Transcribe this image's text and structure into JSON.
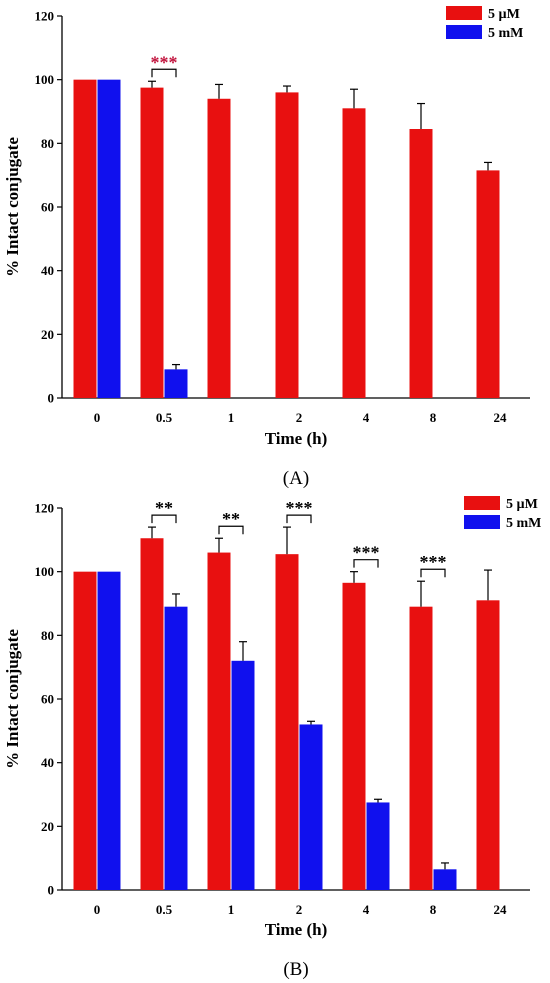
{
  "chart_data": [
    {
      "type": "bar",
      "panel_label": "(A)",
      "xlabel": "Time (h)",
      "ylabel": "% Intact conjugate",
      "ylim": [
        0,
        120
      ],
      "yticks": [
        0,
        20,
        40,
        60,
        80,
        100,
        120
      ],
      "categories": [
        "0",
        "0.5",
        "1",
        "2",
        "4",
        "8",
        "24"
      ],
      "series": [
        {
          "name": "5 µM",
          "color": "#e81010",
          "values": [
            100,
            97.5,
            94,
            96,
            91,
            84.5,
            71.5
          ],
          "errors": [
            0,
            2,
            4.5,
            2,
            6,
            8,
            2.5
          ]
        },
        {
          "name": "5 mM",
          "color": "#1010ee",
          "values": [
            100,
            9,
            null,
            null,
            null,
            null,
            null
          ],
          "errors": [
            0,
            1.5,
            null,
            null,
            null,
            null,
            null
          ]
        }
      ],
      "significance": [
        {
          "category": "0.5",
          "label": "***",
          "color": "#c0103a"
        }
      ],
      "legend_position": "top-right"
    },
    {
      "type": "bar",
      "panel_label": "(B)",
      "xlabel": "Time (h)",
      "ylabel": "% Intact conjugate",
      "ylim": [
        0,
        120
      ],
      "yticks": [
        0,
        20,
        40,
        60,
        80,
        100,
        120
      ],
      "categories": [
        "0",
        "0.5",
        "1",
        "2",
        "4",
        "8",
        "24"
      ],
      "series": [
        {
          "name": "5 µM",
          "color": "#e81010",
          "values": [
            100,
            110.5,
            106,
            105.5,
            96.5,
            89,
            91
          ],
          "errors": [
            0,
            3.5,
            4.5,
            8.5,
            3.5,
            8,
            9.5
          ]
        },
        {
          "name": "5 mM",
          "color": "#1010ee",
          "values": [
            100,
            89,
            72,
            52,
            27.5,
            6.5,
            null
          ],
          "errors": [
            0,
            4,
            6,
            1,
            1,
            2,
            null
          ]
        }
      ],
      "significance": [
        {
          "category": "0.5",
          "label": "**",
          "color": "#000000"
        },
        {
          "category": "1",
          "label": "**",
          "color": "#000000"
        },
        {
          "category": "2",
          "label": "***",
          "color": "#000000"
        },
        {
          "category": "4",
          "label": "***",
          "color": "#000000"
        },
        {
          "category": "8",
          "label": "***",
          "color": "#000000"
        }
      ],
      "legend_position": "top-right"
    }
  ]
}
